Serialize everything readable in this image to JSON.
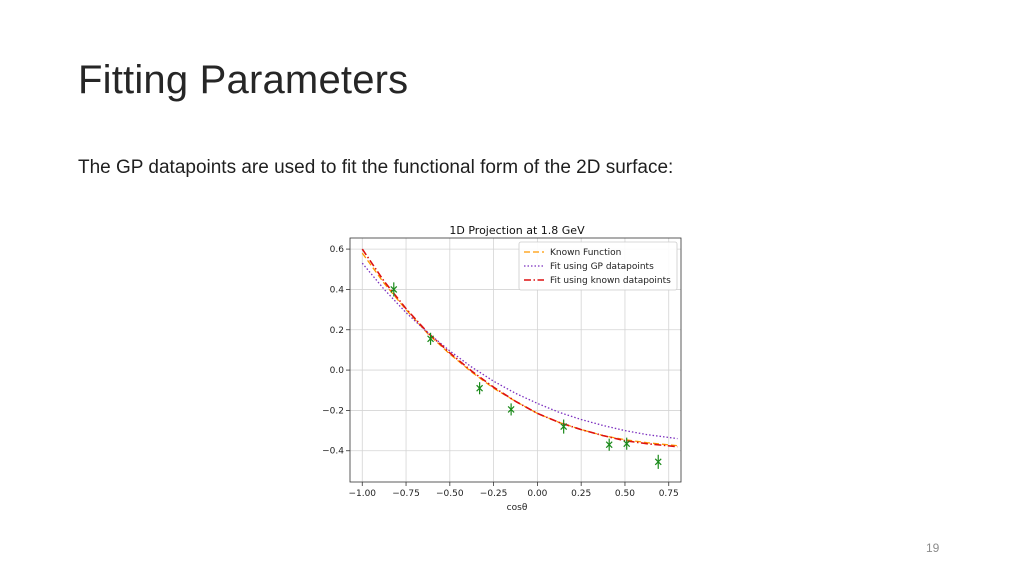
{
  "slide": {
    "title": "Fitting Parameters",
    "body": "The GP datapoints are used to fit the functional form of the 2D surface:",
    "page_number": "19"
  },
  "chart_data": {
    "type": "line",
    "title": "1D Projection at 1.8 GeV",
    "xlabel": "cosθ",
    "ylabel": "",
    "xlim": [
      -1.07,
      0.82
    ],
    "ylim": [
      -0.555,
      0.655
    ],
    "x_ticks": [
      -1.0,
      -0.75,
      -0.5,
      -0.25,
      0.0,
      0.25,
      0.5,
      0.75
    ],
    "x_tick_labels": [
      "−1.00",
      "−0.75",
      "−0.50",
      "−0.25",
      "0.00",
      "0.25",
      "0.50",
      "0.75"
    ],
    "y_ticks": [
      -0.4,
      -0.2,
      0.0,
      0.2,
      0.4,
      0.6
    ],
    "y_tick_labels": [
      "−0.4",
      "−0.2",
      "0.0",
      "0.2",
      "0.4",
      "0.6"
    ],
    "grid": true,
    "legend_position": "top-right",
    "series": [
      {
        "name": "Known Function",
        "style": "dashed",
        "color": "#ff9900",
        "x": [
          -1.0,
          -0.875,
          -0.75,
          -0.625,
          -0.5,
          -0.375,
          -0.25,
          -0.125,
          0.0,
          0.125,
          0.25,
          0.375,
          0.5,
          0.625,
          0.8
        ],
        "y": [
          0.58,
          0.43,
          0.3,
          0.18,
          0.08,
          -0.01,
          -0.09,
          -0.155,
          -0.215,
          -0.26,
          -0.295,
          -0.325,
          -0.345,
          -0.36,
          -0.375
        ]
      },
      {
        "name": "Fit using GP datapoints",
        "style": "dotted",
        "color": "#7b2fbf",
        "x": [
          -1.0,
          -0.875,
          -0.75,
          -0.625,
          -0.5,
          -0.375,
          -0.25,
          -0.125,
          0.0,
          0.125,
          0.25,
          0.375,
          0.5,
          0.625,
          0.8
        ],
        "y": [
          0.53,
          0.4,
          0.285,
          0.185,
          0.095,
          0.015,
          -0.055,
          -0.115,
          -0.165,
          -0.21,
          -0.245,
          -0.275,
          -0.3,
          -0.32,
          -0.34
        ]
      },
      {
        "name": "Fit using known datapoints",
        "style": "dashdot",
        "color": "#dd1111",
        "x": [
          -1.0,
          -0.875,
          -0.75,
          -0.625,
          -0.5,
          -0.375,
          -0.25,
          -0.125,
          0.0,
          0.125,
          0.25,
          0.375,
          0.5,
          0.625,
          0.8
        ],
        "y": [
          0.6,
          0.44,
          0.305,
          0.185,
          0.085,
          -0.005,
          -0.085,
          -0.155,
          -0.215,
          -0.26,
          -0.295,
          -0.325,
          -0.35,
          -0.365,
          -0.38
        ]
      }
    ],
    "points": {
      "color": "#1a8a1a",
      "x": [
        -0.82,
        -0.61,
        -0.33,
        -0.15,
        0.15,
        0.41,
        0.51,
        0.69
      ],
      "y": [
        0.4,
        0.155,
        -0.09,
        -0.195,
        -0.28,
        -0.37,
        -0.365,
        -0.455
      ],
      "yerr": [
        0.035,
        0.03,
        0.03,
        0.03,
        0.035,
        0.03,
        0.03,
        0.035
      ]
    }
  }
}
